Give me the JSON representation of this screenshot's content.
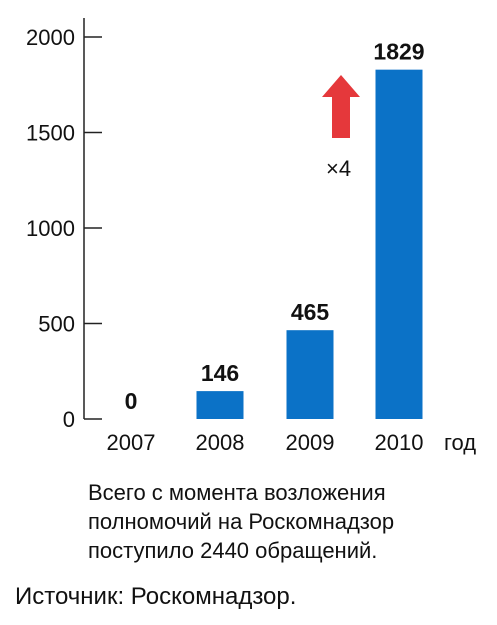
{
  "chart_data": {
    "type": "bar",
    "categories": [
      "2007",
      "2008",
      "2009",
      "2010"
    ],
    "values": [
      0,
      146,
      465,
      1829
    ],
    "data_labels": [
      "0",
      "146",
      "465",
      "1829"
    ],
    "xlabel": "год",
    "ylabel": "",
    "ylim": [
      0,
      2000
    ],
    "yticks": [
      0,
      500,
      1000,
      1500,
      2000
    ],
    "bar_color": "#0b72c7",
    "grid": false,
    "annotation": {
      "text": "×4",
      "arrow_color": "#e5383b",
      "direction": "up",
      "position": "between 2009 and 2010"
    }
  },
  "note_lines": [
    "Всего с момента возложения",
    "полномочий на Роскомнадзор",
    "поступило 2440 обращений."
  ],
  "source": "Источник: Роскомнадзор."
}
